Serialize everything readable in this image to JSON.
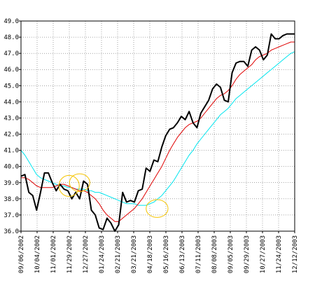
{
  "chart_data": {
    "type": "line",
    "title": "",
    "xlabel": "",
    "ylabel": "",
    "ylim": [
      36.0,
      49.0
    ],
    "yticks": [
      "36.0",
      "37.0",
      "38.0",
      "39.0",
      "40.0",
      "41.0",
      "42.0",
      "43.0",
      "44.0",
      "45.0",
      "46.0",
      "47.0",
      "48.0",
      "49.0"
    ],
    "xticks": [
      "09/06/2002",
      "10/04/2002",
      "11/01/2002",
      "11/29/2002",
      "12/27/2002",
      "01/24/2003",
      "02/21/2003",
      "03/21/2003",
      "04/18/2003",
      "05/16/2003",
      "06/13/2003",
      "07/11/2003",
      "08/08/2003",
      "09/05/2003",
      "09/29/2003",
      "10/27/2003",
      "11/24/2003",
      "12/12/2003"
    ],
    "grid": true,
    "legend": "none",
    "colors": {
      "price": "#000000",
      "ma_short": "#e00000",
      "ma_long": "#00e5ee",
      "highlight": "#f5c400",
      "grid": "#000000",
      "frame": "#000000"
    },
    "series": [
      {
        "key": "price",
        "x": [
          0,
          1,
          2,
          3,
          4,
          5,
          6,
          7,
          8,
          9,
          10,
          11,
          12,
          13,
          14,
          15,
          16,
          17,
          18,
          19,
          20,
          21,
          22,
          23,
          24,
          25,
          26,
          27,
          28,
          29,
          30,
          31,
          32,
          33,
          34,
          35,
          36,
          37,
          38,
          39,
          40,
          41,
          42,
          43,
          44,
          45,
          46,
          47,
          48,
          49,
          50,
          51,
          52,
          53,
          54,
          55,
          56,
          57,
          58,
          59,
          60,
          61,
          62,
          63,
          64,
          65,
          66,
          67,
          68,
          69,
          70
        ],
        "values": [
          39.4,
          39.5,
          38.4,
          38.2,
          37.3,
          38.4,
          39.6,
          39.6,
          39.0,
          38.5,
          38.9,
          38.6,
          38.5,
          38.0,
          38.4,
          38.0,
          39.1,
          38.9,
          37.3,
          37.0,
          36.2,
          36.1,
          36.8,
          36.5,
          36.0,
          36.4,
          38.4,
          37.8,
          37.9,
          37.8,
          38.5,
          38.6,
          39.9,
          39.7,
          40.4,
          40.3,
          41.2,
          41.9,
          42.3,
          42.4,
          42.7,
          43.1,
          42.9,
          43.4,
          42.7,
          42.4,
          43.3,
          43.7,
          44.1,
          44.8,
          45.1,
          44.9,
          44.1,
          44.0,
          45.8,
          46.4,
          46.5,
          46.5,
          46.2,
          47.2,
          47.4,
          47.2,
          46.6,
          46.9,
          48.2,
          47.9,
          47.9,
          48.1,
          48.2,
          48.2,
          48.2
        ]
      },
      {
        "key": "ma_short",
        "x": [
          0,
          1,
          2,
          3,
          4,
          5,
          6,
          7,
          8,
          9,
          10,
          11,
          12,
          13,
          14,
          15,
          16,
          17,
          18,
          19,
          20,
          21,
          22,
          23,
          24,
          25,
          26,
          27,
          28,
          29,
          30,
          31,
          32,
          33,
          34,
          35,
          36,
          37,
          38,
          39,
          40,
          41,
          42,
          43,
          44,
          45,
          46,
          47,
          48,
          49,
          50,
          51,
          52,
          53,
          54,
          55,
          56,
          57,
          58,
          59,
          60,
          61,
          62,
          63,
          64,
          65,
          66,
          67,
          68,
          69,
          70
        ],
        "values": [
          39.3,
          39.3,
          39.2,
          39.0,
          38.8,
          38.7,
          38.7,
          38.7,
          38.7,
          38.8,
          38.9,
          38.9,
          38.8,
          38.7,
          38.6,
          38.5,
          38.5,
          38.4,
          38.2,
          38.0,
          37.7,
          37.3,
          37.0,
          36.8,
          36.6,
          36.6,
          36.8,
          37.0,
          37.2,
          37.4,
          37.7,
          38.0,
          38.4,
          38.8,
          39.2,
          39.6,
          40.0,
          40.5,
          41.0,
          41.4,
          41.8,
          42.1,
          42.4,
          42.6,
          42.7,
          42.8,
          43.0,
          43.3,
          43.6,
          43.9,
          44.2,
          44.4,
          44.5,
          44.7,
          45.0,
          45.4,
          45.7,
          45.9,
          46.1,
          46.3,
          46.6,
          46.8,
          46.9,
          47.0,
          47.2,
          47.3,
          47.4,
          47.5,
          47.6,
          47.7,
          47.7
        ]
      },
      {
        "key": "ma_long",
        "x": [
          0,
          1,
          2,
          3,
          4,
          5,
          6,
          7,
          8,
          9,
          10,
          11,
          12,
          13,
          14,
          15,
          16,
          17,
          18,
          19,
          20,
          21,
          22,
          23,
          24,
          25,
          26,
          27,
          28,
          29,
          30,
          31,
          32,
          33,
          34,
          35,
          36,
          37,
          38,
          39,
          40,
          41,
          42,
          43,
          44,
          45,
          46,
          47,
          48,
          49,
          50,
          51,
          52,
          53,
          54,
          55,
          56,
          57,
          58,
          59,
          60,
          61,
          62,
          63,
          64,
          65,
          66,
          67,
          68,
          69,
          70
        ],
        "values": [
          41.0,
          40.7,
          40.3,
          39.9,
          39.5,
          39.3,
          39.2,
          39.1,
          39.0,
          38.9,
          38.8,
          38.8,
          38.7,
          38.7,
          38.6,
          38.6,
          38.6,
          38.5,
          38.5,
          38.4,
          38.4,
          38.3,
          38.2,
          38.1,
          38.0,
          37.9,
          37.8,
          37.7,
          37.7,
          37.7,
          37.6,
          37.6,
          37.6,
          37.7,
          37.8,
          38.0,
          38.2,
          38.5,
          38.8,
          39.1,
          39.5,
          39.9,
          40.3,
          40.7,
          41.0,
          41.4,
          41.7,
          42.0,
          42.3,
          42.6,
          42.9,
          43.2,
          43.4,
          43.6,
          43.9,
          44.2,
          44.4,
          44.6,
          44.8,
          45.0,
          45.2,
          45.4,
          45.6,
          45.8,
          46.0,
          46.2,
          46.4,
          46.6,
          46.8,
          47.0,
          47.1
        ]
      }
    ],
    "annotations": [
      {
        "type": "ellipse",
        "x": 12.3,
        "y": 38.8,
        "rx": 2.6,
        "ry": 0.65
      },
      {
        "type": "ellipse",
        "x": 15.0,
        "y": 39.0,
        "rx": 2.6,
        "ry": 0.55
      },
      {
        "type": "ellipse",
        "x": 34.8,
        "y": 37.4,
        "rx": 2.8,
        "ry": 0.55
      }
    ],
    "x_domain": [
      0,
      70
    ]
  }
}
